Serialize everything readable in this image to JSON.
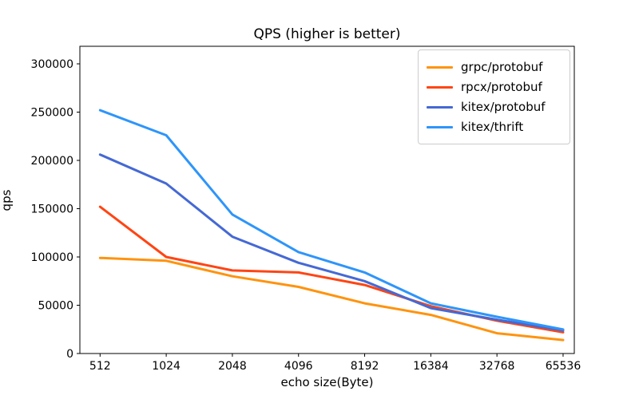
{
  "chart_data": {
    "type": "line",
    "title": "QPS (higher is better)",
    "xlabel": "echo size(Byte)",
    "ylabel": "qps",
    "categories": [
      "512",
      "1024",
      "2048",
      "4096",
      "8192",
      "16384",
      "32768",
      "65536"
    ],
    "x_scale": "log2-categorical",
    "yticks": [
      0,
      50000,
      100000,
      150000,
      200000,
      250000,
      300000
    ],
    "ylim": [
      0,
      317000
    ],
    "grid": false,
    "legend_position": "upper right",
    "series": [
      {
        "name": "grpc/protobuf",
        "color": "#ff930e",
        "values": [
          99000,
          96000,
          80000,
          69000,
          52000,
          40000,
          21000,
          14000
        ]
      },
      {
        "name": "rpcx/protobuf",
        "color": "#ff4514",
        "values": [
          152000,
          100000,
          86000,
          84000,
          71000,
          49000,
          34000,
          22000
        ]
      },
      {
        "name": "kitex/protobuf",
        "color": "#4569d4",
        "values": [
          206000,
          176000,
          121000,
          94000,
          75000,
          47000,
          35000,
          24000
        ]
      },
      {
        "name": "kitex/thrift",
        "color": "#2e95fa",
        "values": [
          252000,
          226000,
          144000,
          105000,
          84000,
          52000,
          38000,
          25000
        ]
      }
    ]
  }
}
